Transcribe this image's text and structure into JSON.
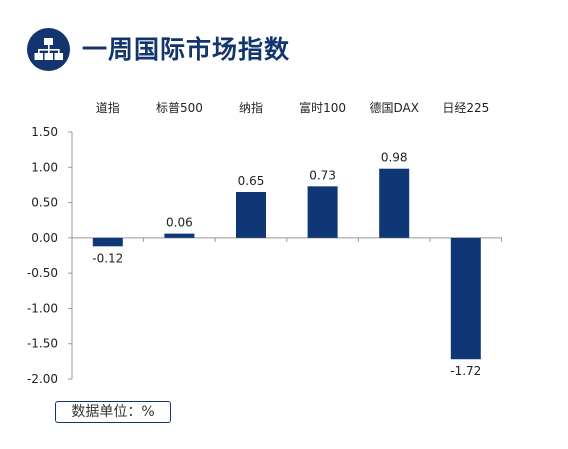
{
  "header": {
    "title": "一周国际市场指数",
    "icon": "hierarchy-icon"
  },
  "unit_note": "数据单位：%",
  "colors": {
    "bar": "#0f3675",
    "title": "#12356e",
    "axis": "#999999"
  },
  "chart_data": {
    "type": "bar",
    "title": "",
    "xlabel": "",
    "ylabel": "",
    "categories": [
      "道指",
      "标普500",
      "纳指",
      "富时100",
      "德国DAX",
      "日经225"
    ],
    "values": [
      -0.12,
      0.06,
      0.65,
      0.73,
      0.98,
      -1.72
    ],
    "data_labels": [
      "-0.12",
      "0.06",
      "0.65",
      "0.73",
      "0.98",
      "-1.72"
    ],
    "yticks": [
      "1.50",
      "1.00",
      "0.50",
      "0.00",
      "-0.50",
      "-1.00",
      "-1.50",
      "-2.00"
    ],
    "ytick_values": [
      1.5,
      1.0,
      0.5,
      0.0,
      -0.5,
      -1.0,
      -1.5,
      -2.0
    ],
    "ylim": [
      -2.0,
      1.5
    ],
    "category_labels_position": "top",
    "grid": false,
    "legend": "none"
  }
}
